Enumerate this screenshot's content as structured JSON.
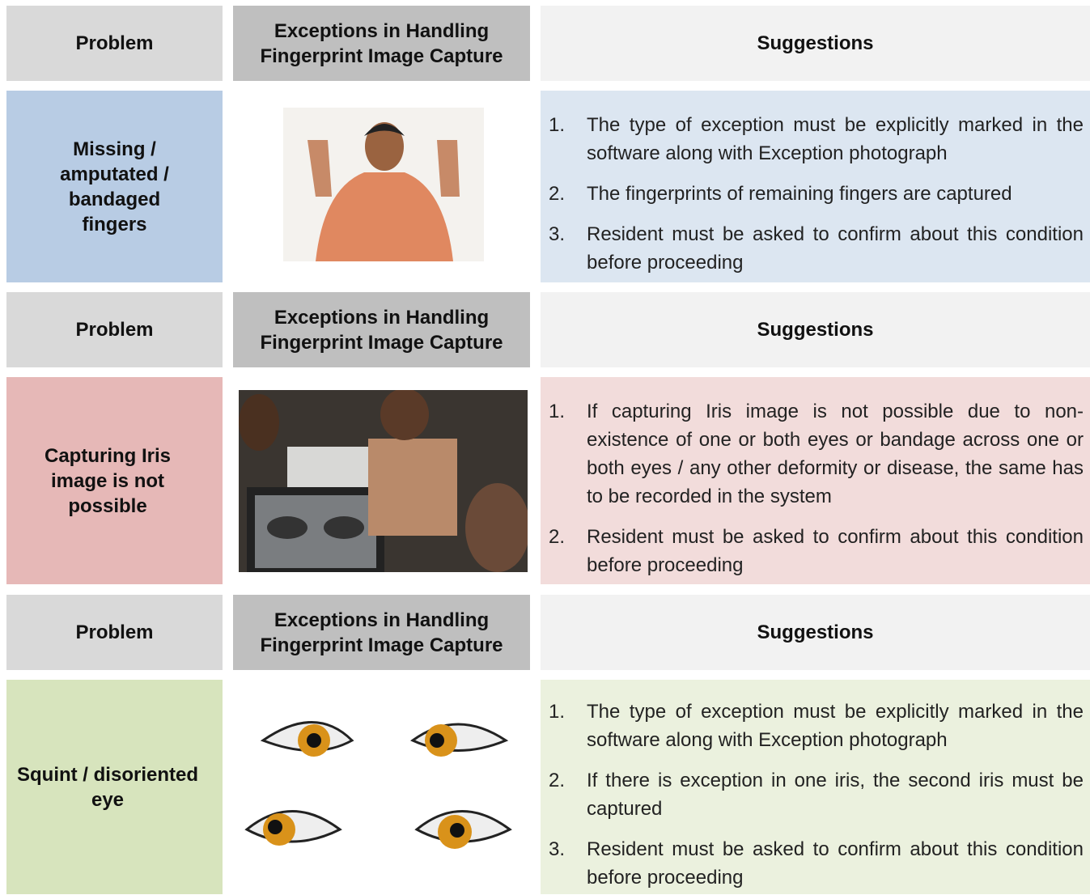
{
  "sections": [
    {
      "header": {
        "problem": "Problem",
        "exceptions": "Exceptions in Handling Fingerprint Image Capture",
        "suggestions": "Suggestions"
      },
      "problem": "Missing / amputated / bandaged fingers",
      "suggestions": [
        {
          "number": "1.",
          "text": "The type of exception must be explicitly marked in the software along with Exception photograph"
        },
        {
          "number": "2.",
          "text": "The fingerprints of remaining fingers are captured"
        },
        {
          "number": "3.",
          "text": "Resident must be asked to confirm about this condition before proceeding"
        }
      ]
    },
    {
      "header": {
        "problem": "Problem",
        "exceptions": "Exceptions in Handling Fingerprint Image Capture",
        "suggestions": "Suggestions"
      },
      "problem": "Capturing Iris image is not possible",
      "suggestions": [
        {
          "number": "1.",
          "text": "If capturing Iris image is not possible due to non-existence of one or both eyes or bandage across one or both eyes / any other deformity or disease, the same has to be recorded in the system"
        },
        {
          "number": "2.",
          "text": "Resident must be asked to confirm about this condition before proceeding"
        }
      ]
    },
    {
      "header": {
        "problem": "Problem",
        "exceptions": "Exceptions in Handling Fingerprint Image Capture",
        "suggestions": "Suggestions"
      },
      "problem": "Squint / disoriented eye",
      "suggestions": [
        {
          "number": "1.",
          "text": "The type of exception must be explicitly marked in the software along with Exception photograph"
        },
        {
          "number": "2.",
          "text": "If there is exception in one iris, the second iris must be captured"
        },
        {
          "number": "3.",
          "text": "Resident must be asked to confirm about this condition before proceeding"
        }
      ]
    }
  ]
}
